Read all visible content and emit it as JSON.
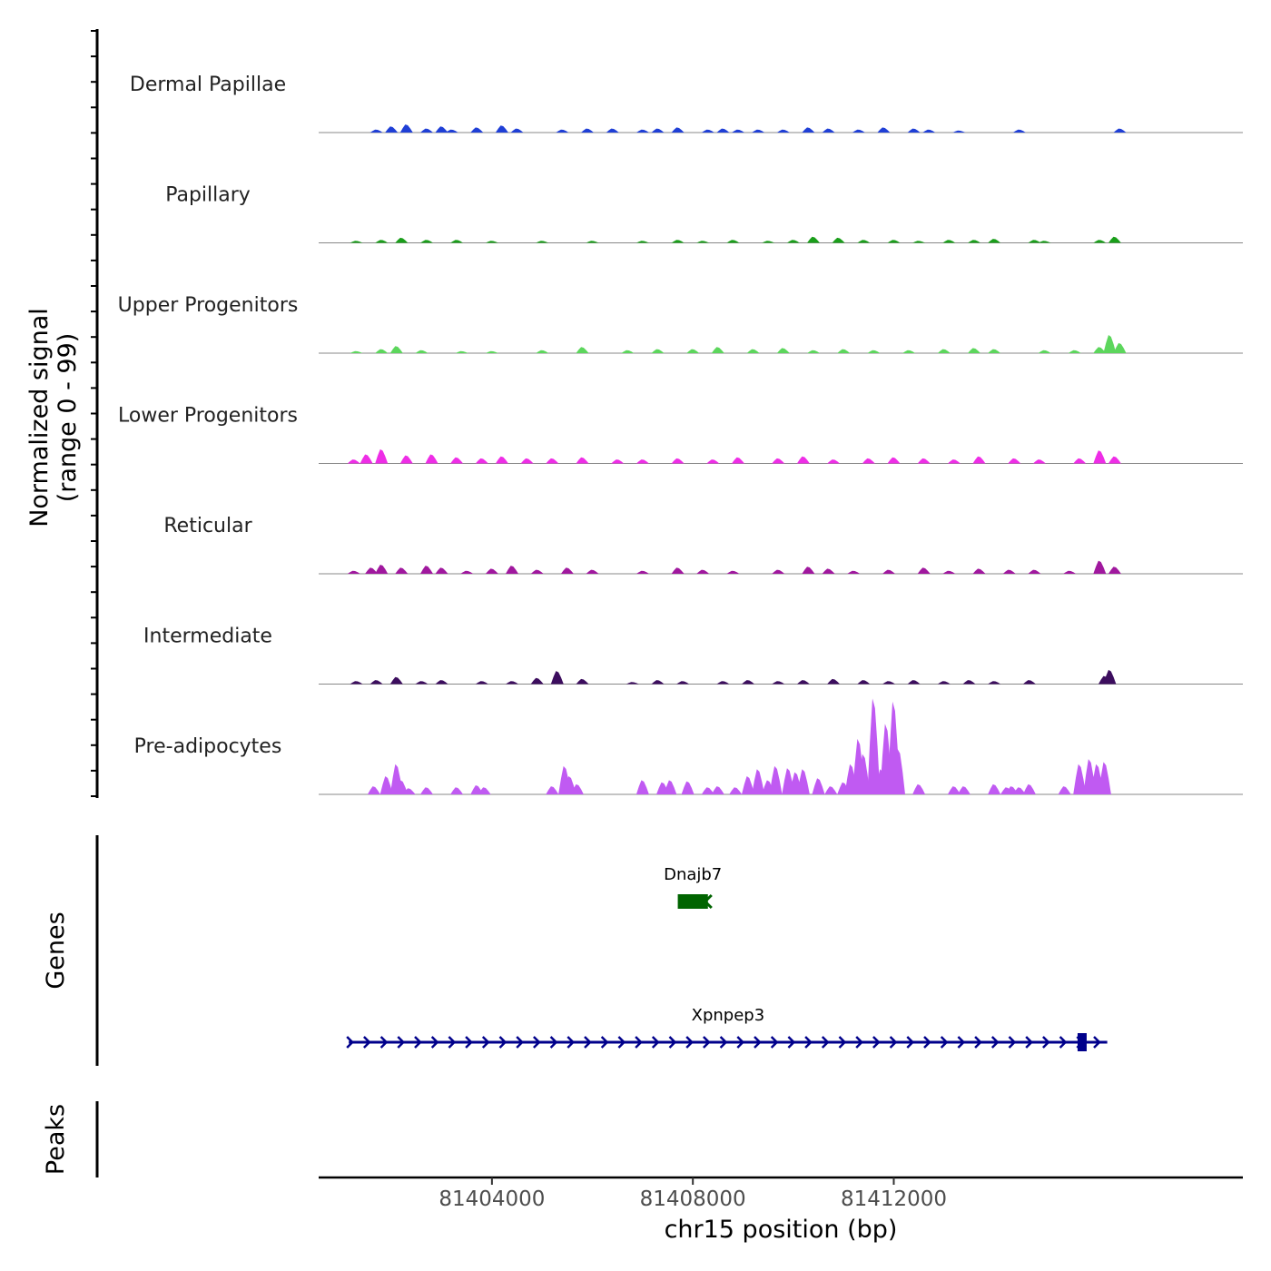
{
  "chart_data": {
    "type": "area",
    "title": "",
    "chromosome": "chr15",
    "xlabel": "chr15 position (bp)",
    "xlim": [
      81400550,
      81418950
    ],
    "x_ticks": [
      81404000,
      81408000,
      81412000
    ],
    "x_tick_labels": [
      "81404000",
      "81408000",
      "81412000"
    ],
    "ylabel_line1": "Normalized signal",
    "ylabel_line2": "(range 0 - 99)",
    "ylim": [
      0,
      99
    ],
    "colors": {
      "Dermal Papillae": "#1f3fd6",
      "Papillary": "#1a9e1a",
      "Upper Progenitors": "#5cd65c",
      "Lower Progenitors": "#ee2de6",
      "Reticular": "#a0189e",
      "Intermediate": "#3c0d5e",
      "Pre-adipocytes": "#c05af2"
    },
    "series": [
      {
        "name": "Dermal Papillae",
        "x": [
          81401700,
          81402000,
          81402300,
          81402700,
          81403000,
          81403200,
          81403700,
          81404200,
          81404500,
          81405400,
          81405900,
          81406400,
          81407000,
          81407300,
          81407700,
          81408300,
          81408600,
          81408900,
          81409300,
          81409800,
          81410300,
          81410700,
          81411300,
          81411800,
          81412400,
          81412700,
          81413300,
          81414500,
          81416500
        ],
        "values": [
          3,
          6,
          8,
          4,
          6,
          3,
          5,
          7,
          4,
          3,
          4,
          4,
          3,
          4,
          5,
          3,
          4,
          3,
          3,
          3,
          5,
          4,
          3,
          5,
          4,
          3,
          2,
          3,
          4
        ]
      },
      {
        "name": "Papillary",
        "x": [
          81401300,
          81401800,
          81402200,
          81402700,
          81403300,
          81404000,
          81405000,
          81406000,
          81407000,
          81407700,
          81408200,
          81408800,
          81409500,
          81410000,
          81410400,
          81410900,
          81411400,
          81412000,
          81412500,
          81413100,
          81413600,
          81414000,
          81414800,
          81415000,
          81416100,
          81416400
        ],
        "values": [
          2,
          3,
          5,
          3,
          3,
          2,
          2,
          2,
          2,
          3,
          2,
          3,
          2,
          3,
          6,
          5,
          3,
          3,
          2,
          3,
          3,
          4,
          3,
          2,
          3,
          6
        ]
      },
      {
        "name": "Upper Progenitors",
        "x": [
          81401300,
          81401800,
          81402100,
          81402600,
          81403400,
          81404000,
          81405000,
          81405800,
          81406700,
          81407300,
          81408000,
          81408500,
          81409200,
          81409800,
          81410400,
          81411000,
          81411600,
          81412300,
          81413000,
          81413600,
          81414000,
          81415000,
          81415600,
          81416100,
          81416300,
          81416500
        ],
        "values": [
          2,
          4,
          7,
          3,
          2,
          2,
          3,
          6,
          3,
          4,
          4,
          6,
          4,
          5,
          3,
          4,
          3,
          3,
          4,
          5,
          4,
          3,
          3,
          6,
          18,
          10
        ]
      },
      {
        "name": "Lower Progenitors",
        "x": [
          81401250,
          81401500,
          81401800,
          81402300,
          81402800,
          81403300,
          81403800,
          81404200,
          81404700,
          81405200,
          81405800,
          81406500,
          81407000,
          81407700,
          81408400,
          81408900,
          81409700,
          81410200,
          81410800,
          81411500,
          81412000,
          81412600,
          81413200,
          81413700,
          81414400,
          81414900,
          81415700,
          81416100,
          81416400
        ],
        "values": [
          4,
          9,
          14,
          8,
          9,
          6,
          5,
          7,
          5,
          5,
          6,
          4,
          4,
          5,
          4,
          6,
          5,
          7,
          4,
          5,
          6,
          5,
          4,
          7,
          5,
          4,
          5,
          13,
          7
        ]
      },
      {
        "name": "Reticular",
        "x": [
          81401250,
          81401600,
          81401800,
          81402200,
          81402700,
          81403000,
          81403500,
          81404000,
          81404400,
          81404900,
          81405500,
          81406000,
          81407000,
          81407700,
          81408200,
          81408800,
          81409700,
          81410300,
          81410700,
          81411200,
          81411900,
          81412600,
          81413100,
          81413700,
          81414300,
          81414800,
          81415500,
          81416100,
          81416400
        ],
        "values": [
          3,
          6,
          9,
          6,
          8,
          6,
          3,
          5,
          8,
          4,
          6,
          4,
          3,
          6,
          4,
          3,
          4,
          7,
          5,
          3,
          4,
          6,
          3,
          5,
          4,
          4,
          3,
          13,
          7
        ]
      },
      {
        "name": "Intermediate",
        "x": [
          81401300,
          81401700,
          81402100,
          81402600,
          81403000,
          81403800,
          81404400,
          81404900,
          81405300,
          81405800,
          81406800,
          81407300,
          81407800,
          81408600,
          81409100,
          81409700,
          81410200,
          81410800,
          81411400,
          81411900,
          81412400,
          81413000,
          81413500,
          81414000,
          81414700,
          81416200,
          81416300
        ],
        "values": [
          3,
          4,
          7,
          3,
          4,
          3,
          3,
          6,
          13,
          5,
          2,
          4,
          3,
          3,
          4,
          3,
          4,
          5,
          4,
          3,
          4,
          3,
          4,
          3,
          4,
          8,
          14
        ]
      },
      {
        "name": "Pre-adipocytes",
        "x": [
          81401650,
          81401900,
          81402100,
          81402200,
          81402350,
          81402700,
          81403300,
          81403700,
          81403850,
          81405200,
          81405450,
          81405550,
          81405700,
          81407000,
          81407400,
          81407550,
          81407900,
          81408300,
          81408500,
          81408850,
          81409100,
          81409300,
          81409500,
          81409650,
          81409900,
          81410050,
          81410200,
          81410500,
          81410750,
          81411000,
          81411150,
          81411300,
          81411400,
          81411600,
          81411750,
          81411850,
          81412000,
          81412100,
          81412500,
          81413200,
          81413400,
          81414000,
          81414250,
          81414350,
          81414500,
          81414700,
          81415400,
          81415700,
          81415900,
          81416050,
          81416200
        ],
        "values": [
          8,
          18,
          30,
          14,
          6,
          7,
          7,
          9,
          7,
          8,
          28,
          18,
          10,
          14,
          12,
          14,
          13,
          7,
          8,
          7,
          18,
          25,
          14,
          28,
          26,
          22,
          25,
          16,
          8,
          12,
          30,
          55,
          40,
          95,
          25,
          70,
          92,
          45,
          10,
          8,
          8,
          10,
          7,
          8,
          7,
          10,
          8,
          30,
          35,
          30,
          32
        ]
      }
    ],
    "genes_label": "Genes",
    "genes": [
      {
        "name": "Dnajb7",
        "start": 81407700,
        "end": 81408300,
        "strand": "-",
        "color": "#006400"
      },
      {
        "name": "Xpnpep3",
        "start": 81401150,
        "end": 81416250,
        "strand": "+",
        "color": "#00008b",
        "exon_position": 81415750
      }
    ],
    "peaks_label": "Peaks",
    "peaks": []
  }
}
